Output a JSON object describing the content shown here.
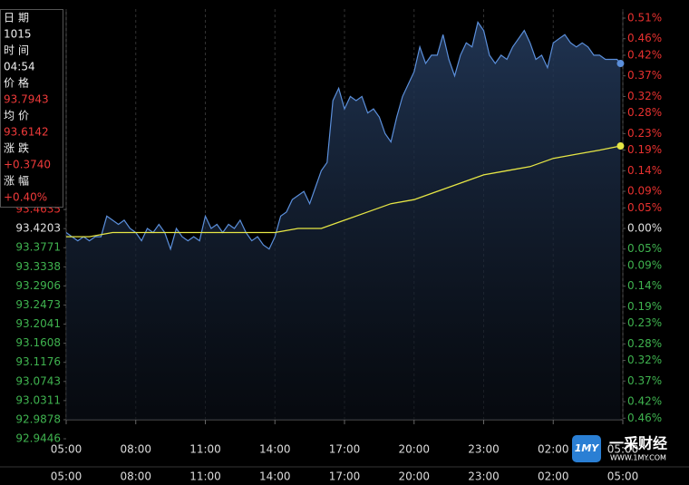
{
  "chart_data": {
    "type": "line",
    "xlim": [
      0,
      24
    ],
    "xticks": [
      {
        "value": 0,
        "label": "05:00"
      },
      {
        "value": 3,
        "label": "08:00"
      },
      {
        "value": 6,
        "label": "11:00"
      },
      {
        "value": 9,
        "label": "14:00"
      },
      {
        "value": 12,
        "label": "17:00"
      },
      {
        "value": 15,
        "label": "20:00"
      },
      {
        "value": 18,
        "label": "23:00"
      },
      {
        "value": 21,
        "label": "02:00"
      },
      {
        "value": 24,
        "label": "05:00"
      }
    ],
    "ylim": [
      92.9446,
      93.8967
    ],
    "yticks": [
      93.4635,
      93.4203,
      93.3771,
      93.3338,
      93.2906,
      93.2473,
      93.2041,
      93.1608,
      93.1176,
      93.0743,
      93.0311,
      92.9878,
      92.9446
    ],
    "y2lim": [
      -0.51,
      0.51
    ],
    "y2ticks": [
      {
        "value": 0.51,
        "label": "0.51%"
      },
      {
        "value": 0.46,
        "label": "0.46%"
      },
      {
        "value": 0.42,
        "label": "0.42%"
      },
      {
        "value": 0.37,
        "label": "0.37%"
      },
      {
        "value": 0.32,
        "label": "0.32%"
      },
      {
        "value": 0.28,
        "label": "0.28%"
      },
      {
        "value": 0.23,
        "label": "0.23%"
      },
      {
        "value": 0.19,
        "label": "0.19%"
      },
      {
        "value": 0.14,
        "label": "0.14%"
      },
      {
        "value": 0.09,
        "label": "0.09%"
      },
      {
        "value": 0.05,
        "label": "0.05%"
      },
      {
        "value": 0,
        "label": "0.00%"
      },
      {
        "value": -0.05,
        "label": "0.05%"
      },
      {
        "value": -0.09,
        "label": "0.09%"
      },
      {
        "value": -0.14,
        "label": "0.14%"
      },
      {
        "value": -0.19,
        "label": "0.19%"
      },
      {
        "value": -0.23,
        "label": "0.23%"
      },
      {
        "value": -0.28,
        "label": "0.28%"
      },
      {
        "value": -0.32,
        "label": "0.32%"
      },
      {
        "value": -0.37,
        "label": "0.37%"
      },
      {
        "value": -0.42,
        "label": "0.42%"
      },
      {
        "value": -0.46,
        "label": "0.46%"
      }
    ],
    "series": [
      {
        "axis": "y2",
        "color": "#5b8fdb",
        "x": [
          0,
          0.25,
          0.5,
          0.75,
          1,
          1.25,
          1.5,
          1.75,
          2,
          2.25,
          2.5,
          2.75,
          3,
          3.25,
          3.5,
          3.75,
          4,
          4.25,
          4.5,
          4.75,
          5,
          5.25,
          5.5,
          5.75,
          6,
          6.25,
          6.5,
          6.75,
          7,
          7.25,
          7.5,
          7.75,
          8,
          8.25,
          8.5,
          8.75,
          9,
          9.25,
          9.5,
          9.75,
          10,
          10.25,
          10.5,
          10.75,
          11,
          11.25,
          11.5,
          11.75,
          12,
          12.25,
          12.5,
          12.75,
          13,
          13.25,
          13.5,
          13.75,
          14,
          14.25,
          14.5,
          14.75,
          15,
          15.25,
          15.5,
          15.75,
          16,
          16.25,
          16.5,
          16.75,
          17,
          17.25,
          17.5,
          17.75,
          18,
          18.25,
          18.5,
          18.75,
          19,
          19.25,
          19.5,
          19.75,
          20,
          20.25,
          20.5,
          20.75,
          21,
          21.25,
          21.5,
          21.75,
          22,
          22.25,
          22.5,
          22.75,
          23,
          23.25,
          23.5,
          23.75,
          23.9
        ],
        "values": [
          -0.01,
          -0.02,
          -0.03,
          -0.02,
          -0.03,
          -0.02,
          -0.02,
          0.03,
          0.02,
          0.01,
          0.02,
          0,
          -0.01,
          -0.03,
          0,
          -0.01,
          0.01,
          -0.01,
          -0.05,
          0,
          -0.02,
          -0.03,
          -0.02,
          -0.03,
          0.03,
          0,
          0.01,
          -0.01,
          0.01,
          0,
          0.02,
          -0.01,
          -0.03,
          -0.02,
          -0.04,
          -0.05,
          -0.02,
          0.03,
          0.04,
          0.07,
          0.08,
          0.09,
          0.06,
          0.1,
          0.14,
          0.16,
          0.31,
          0.34,
          0.29,
          0.32,
          0.31,
          0.32,
          0.28,
          0.29,
          0.27,
          0.23,
          0.21,
          0.27,
          0.32,
          0.35,
          0.38,
          0.44,
          0.4,
          0.42,
          0.42,
          0.47,
          0.41,
          0.37,
          0.42,
          0.45,
          0.44,
          0.5,
          0.48,
          0.42,
          0.4,
          0.42,
          0.41,
          0.44,
          0.46,
          0.48,
          0.45,
          0.41,
          0.42,
          0.39,
          0.45,
          0.46,
          0.47,
          0.45,
          0.44,
          0.45,
          0.44,
          0.42,
          0.42,
          0.41,
          0.41,
          0.41,
          0.4
        ]
      },
      {
        "axis": "y2",
        "color": "#e6e645",
        "x": [
          0,
          1,
          2,
          3,
          4,
          5,
          6,
          7,
          8,
          9,
          10,
          11,
          12,
          13,
          14,
          15,
          16,
          17,
          18,
          19,
          20,
          21,
          22,
          23,
          23.9
        ],
        "values": [
          -0.02,
          -0.02,
          -0.01,
          -0.01,
          -0.01,
          -0.01,
          -0.01,
          -0.01,
          -0.01,
          -0.01,
          0,
          0,
          0.02,
          0.04,
          0.06,
          0.07,
          0.09,
          0.11,
          0.13,
          0.14,
          0.15,
          0.17,
          0.18,
          0.19,
          0.2
        ]
      }
    ]
  },
  "tooltip": {
    "rows": [
      {
        "label": "日期",
        "value": "1015"
      },
      {
        "label": "时间",
        "value": "04:54"
      },
      {
        "label": "价格",
        "value": "93.7943"
      },
      {
        "label": "均价",
        "value": "93.6142"
      },
      {
        "label": "涨跌",
        "value": "+0.3740"
      },
      {
        "label": "涨幅",
        "value": "+0.40%"
      }
    ]
  },
  "watermark": {
    "logo": "1MY",
    "name": "一采财经",
    "url": "WWW.1MY.COM"
  }
}
